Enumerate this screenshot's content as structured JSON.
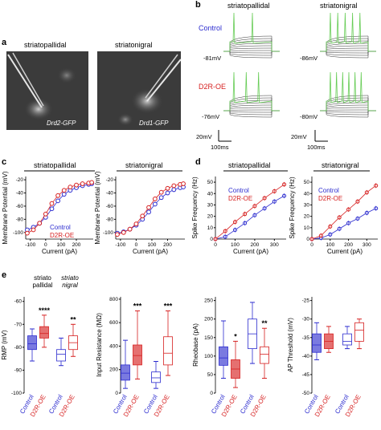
{
  "panel_labels": {
    "a": "a",
    "b": "b",
    "c": "c",
    "d": "d",
    "e": "e"
  },
  "panel_a": {
    "left_title": "striatopallidal",
    "right_title": "striatonigral",
    "left_label": "Drd2-GFP",
    "right_label": "Drd1-GFP"
  },
  "panel_b": {
    "col_titles": [
      "striatopallidal",
      "striatonigral"
    ],
    "row_labels": [
      "Control",
      "D2R-OE"
    ],
    "rmp_labels": [
      "-81mV",
      "-86mV",
      "-76mV",
      "-80mV"
    ],
    "scale_v": "20mV",
    "scale_t": "100ms",
    "colors": {
      "control": "#2c2ccf",
      "d2r": "#d62020",
      "trace_hi": "#66cc55",
      "trace": "#333333"
    }
  },
  "panel_c": {
    "titles": [
      "striatopallidal",
      "striatonigral"
    ],
    "ylabel": "Membrane Potential (mV)",
    "xlabel": "Current (pA)",
    "yticks": [
      "-20",
      "-40",
      "-60",
      "-80",
      "-100"
    ],
    "xticks": [
      "-100",
      "0",
      "100",
      "200"
    ],
    "legend": [
      "Control",
      "D2R-OE"
    ]
  },
  "panel_d": {
    "titles": [
      "striatopallidal",
      "striatonigral"
    ],
    "ylabel": "Spike Frequency (Hz)",
    "xlabel": "Current (pA)",
    "yticks": [
      "0",
      "10",
      "20",
      "30",
      "40",
      "50"
    ],
    "xticks": [
      "0",
      "100",
      "200",
      "300"
    ],
    "legend": [
      "Control",
      "D2R-OE"
    ]
  },
  "panel_e": {
    "group_a": "striato pallidal",
    "group_b": "striato nigral",
    "p1": {
      "ylabel": "RMP (mV)",
      "yticks": [
        "-60",
        "-70",
        "-80",
        "-90",
        "-100"
      ],
      "stars": [
        "****",
        "**"
      ]
    },
    "p2": {
      "ylabel": "Input Resistance (MΩ)",
      "yticks": [
        "800",
        "600",
        "400",
        "200",
        "0"
      ],
      "stars": [
        "***",
        "***"
      ]
    },
    "p3": {
      "ylabel": "Rheobase (pA)",
      "yticks": [
        "250",
        "200",
        "150",
        "100",
        "50",
        "0"
      ],
      "stars": [
        "*",
        "**"
      ]
    },
    "p4": {
      "ylabel": "AP Threshold (mV)",
      "yticks": [
        "-25",
        "-30",
        "-35",
        "-40",
        "-45",
        "-50"
      ],
      "stars": []
    },
    "xcats": [
      "Control",
      "D2R-OE"
    ]
  },
  "chart_data": [
    {
      "type": "line",
      "title": "striatopallidal",
      "xlabel": "Current (pA)",
      "ylabel": "Membrane Potential (mV)",
      "x": [
        -120,
        -80,
        -40,
        0,
        40,
        80,
        120,
        160,
        200,
        240,
        280,
        300
      ],
      "series": [
        {
          "name": "Control",
          "values": [
            -96,
            -92,
            -86,
            -77,
            -64,
            -52,
            -42,
            -36,
            -32,
            -29,
            -27,
            -26
          ]
        },
        {
          "name": "D2R-OE",
          "values": [
            -101,
            -96,
            -86,
            -72,
            -56,
            -44,
            -36,
            -31,
            -28,
            -26,
            -25,
            -24
          ]
        }
      ],
      "ylim": [
        -110,
        -15
      ],
      "xlim": [
        -130,
        310
      ]
    },
    {
      "type": "line",
      "title": "striatonigral",
      "xlabel": "Current (pA)",
      "ylabel": "Membrane Potential (mV)",
      "x": [
        -120,
        -80,
        -40,
        0,
        40,
        80,
        120,
        160,
        200,
        240,
        280,
        300
      ],
      "series": [
        {
          "name": "Control",
          "values": [
            -101,
            -99,
            -95,
            -89,
            -80,
            -69,
            -57,
            -47,
            -40,
            -35,
            -32,
            -31
          ]
        },
        {
          "name": "D2R-OE",
          "values": [
            -103,
            -100,
            -95,
            -87,
            -75,
            -62,
            -49,
            -39,
            -33,
            -29,
            -27,
            -26
          ]
        }
      ],
      "ylim": [
        -110,
        -15
      ],
      "xlim": [
        -130,
        310
      ]
    },
    {
      "type": "line",
      "title": "striatopallidal",
      "xlabel": "Current (pA)",
      "ylabel": "Spike Frequency (Hz)",
      "x": [
        0,
        50,
        100,
        150,
        200,
        250,
        300,
        350
      ],
      "series": [
        {
          "name": "Control",
          "values": [
            0,
            2,
            8,
            14,
            21,
            27,
            33,
            38
          ]
        },
        {
          "name": "D2R-OE",
          "values": [
            0,
            7,
            15,
            22,
            29,
            36,
            42,
            48
          ]
        }
      ],
      "ylim": [
        0,
        55
      ],
      "xlim": [
        0,
        360
      ]
    },
    {
      "type": "line",
      "title": "striatonigral",
      "xlabel": "Current (pA)",
      "ylabel": "Spike Frequency (Hz)",
      "x": [
        0,
        50,
        100,
        150,
        200,
        250,
        300,
        350
      ],
      "series": [
        {
          "name": "Control",
          "values": [
            0,
            1,
            4,
            9,
            14,
            18,
            23,
            27
          ]
        },
        {
          "name": "D2R-OE",
          "values": [
            0,
            3,
            11,
            19,
            26,
            33,
            41,
            47
          ]
        }
      ],
      "ylim": [
        0,
        55
      ],
      "xlim": [
        0,
        360
      ]
    }
  ]
}
